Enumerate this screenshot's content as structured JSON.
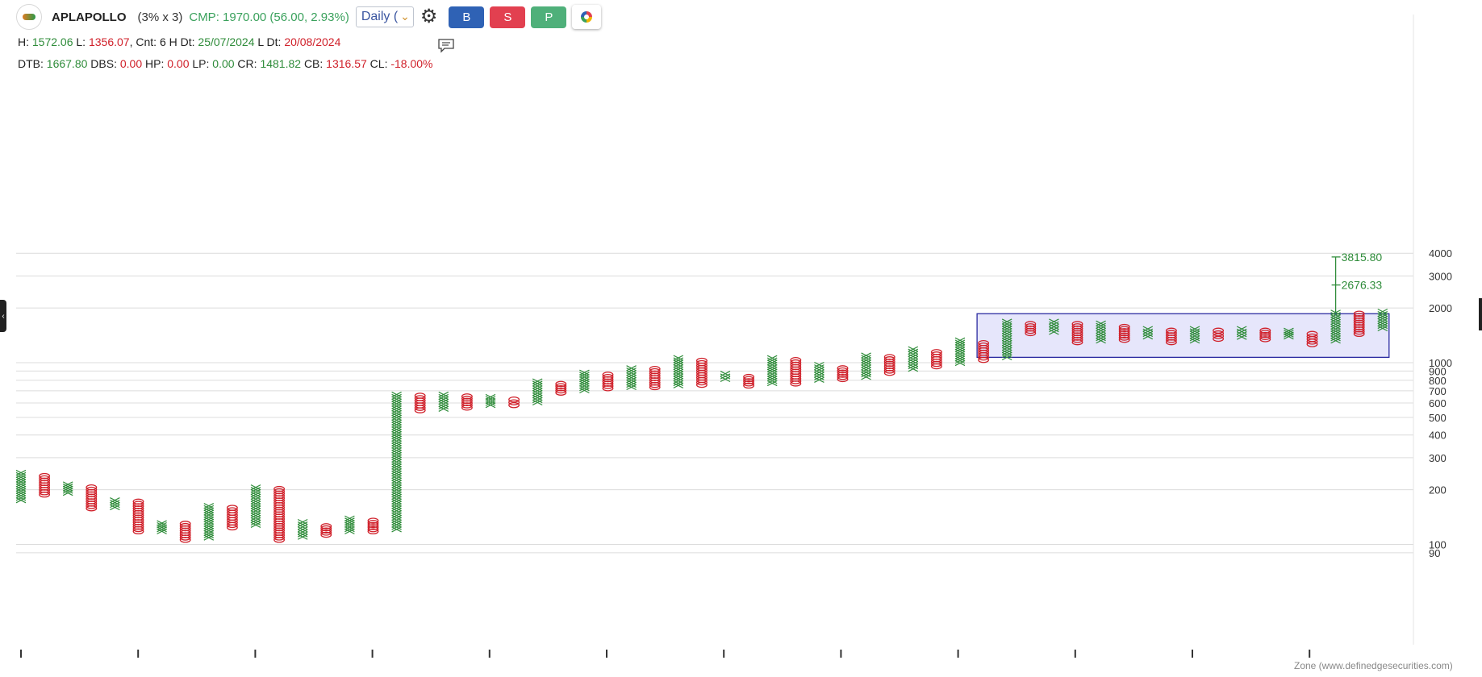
{
  "header": {
    "symbol": "APLAPOLLO",
    "box_size": "(3% x 3)",
    "cmp": "CMP: 1970.00 (56.00, 2.93%)",
    "timeframe": "Daily (",
    "buttons": {
      "buy": "B",
      "sell": "S",
      "p": "P"
    },
    "icons": [
      "logo-icon",
      "chevron-down-icon",
      "gear-icon",
      "ring-icon",
      "comment-icon",
      "collapse-left-icon"
    ]
  },
  "info": {
    "h_label": "H:",
    "h": "1572.06",
    "l_label": "L:",
    "l": "1356.07",
    "cnt_label": ", Cnt:",
    "cnt": "6",
    "hdt_label": "H Dt:",
    "hdt": "25/07/2024",
    "ldt_label": "L Dt:",
    "ldt": "20/08/2024",
    "dtb_label": "DTB:",
    "dtb": "1667.80",
    "dbs_label": "DBS:",
    "dbs": "0.00",
    "hp_label": "HP:",
    "hp": "0.00",
    "lp_label": "LP:",
    "lp": "0.00",
    "cr_label": "CR:",
    "cr": "1481.82",
    "cb_label": "CB:",
    "cb": "1316.57",
    "cl_label": "CL:",
    "cl": "-18.00%"
  },
  "colors": {
    "x": "#2f8c3a",
    "o": "#d0202a",
    "zone_fill": "#e6e6fb",
    "zone_stroke": "#2a2aa0",
    "target": "#2f8c3a"
  },
  "footer": "Zone (www.definedgesecurities.com)",
  "chart_data": {
    "type": "point-and-figure",
    "scale": "log",
    "ylim": [
      85,
      4500
    ],
    "y_ticks": [
      4000,
      3000,
      2000,
      1000,
      900,
      800,
      700,
      600,
      500,
      400,
      300,
      200,
      100,
      90
    ],
    "y_tick_labels": [
      "4000",
      "3000",
      "2000",
      "1000",
      "900",
      "800",
      "700",
      "600",
      "500",
      "400",
      "300",
      "200",
      "100",
      "90"
    ],
    "columns": [
      {
        "t": "X",
        "lo": 175,
        "hi": 248
      },
      {
        "t": "O",
        "lo": 188,
        "hi": 238
      },
      {
        "t": "X",
        "lo": 192,
        "hi": 214
      },
      {
        "t": "O",
        "lo": 158,
        "hi": 206
      },
      {
        "t": "X",
        "lo": 160,
        "hi": 175
      },
      {
        "t": "O",
        "lo": 118,
        "hi": 172
      },
      {
        "t": "X",
        "lo": 118,
        "hi": 131
      },
      {
        "t": "O",
        "lo": 106,
        "hi": 130
      },
      {
        "t": "X",
        "lo": 109,
        "hi": 163
      },
      {
        "t": "O",
        "lo": 124,
        "hi": 159
      },
      {
        "t": "X",
        "lo": 128,
        "hi": 206
      },
      {
        "t": "O",
        "lo": 106,
        "hi": 202
      },
      {
        "t": "X",
        "lo": 110,
        "hi": 133
      },
      {
        "t": "O",
        "lo": 113,
        "hi": 126
      },
      {
        "t": "X",
        "lo": 118,
        "hi": 139
      },
      {
        "t": "O",
        "lo": 118,
        "hi": 135
      },
      {
        "t": "X",
        "lo": 121,
        "hi": 668
      },
      {
        "t": "O",
        "lo": 547,
        "hi": 658
      },
      {
        "t": "X",
        "lo": 557,
        "hi": 668
      },
      {
        "t": "O",
        "lo": 566,
        "hi": 652
      },
      {
        "t": "X",
        "lo": 584,
        "hi": 648
      },
      {
        "t": "O",
        "lo": 584,
        "hi": 627
      },
      {
        "t": "X",
        "lo": 604,
        "hi": 790
      },
      {
        "t": "O",
        "lo": 684,
        "hi": 764
      },
      {
        "t": "X",
        "lo": 704,
        "hi": 882
      },
      {
        "t": "O",
        "lo": 723,
        "hi": 859
      },
      {
        "t": "X",
        "lo": 733,
        "hi": 933
      },
      {
        "t": "O",
        "lo": 733,
        "hi": 924
      },
      {
        "t": "X",
        "lo": 749,
        "hi": 1062
      },
      {
        "t": "O",
        "lo": 755,
        "hi": 1025
      },
      {
        "t": "X",
        "lo": 812,
        "hi": 870
      },
      {
        "t": "O",
        "lo": 748,
        "hi": 835
      },
      {
        "t": "X",
        "lo": 771,
        "hi": 1060
      },
      {
        "t": "O",
        "lo": 768,
        "hi": 1034
      },
      {
        "t": "X",
        "lo": 804,
        "hi": 974
      },
      {
        "t": "O",
        "lo": 812,
        "hi": 932
      },
      {
        "t": "X",
        "lo": 834,
        "hi": 1096
      },
      {
        "t": "O",
        "lo": 879,
        "hi": 1074
      },
      {
        "t": "X",
        "lo": 924,
        "hi": 1187
      },
      {
        "t": "O",
        "lo": 955,
        "hi": 1144
      },
      {
        "t": "X",
        "lo": 995,
        "hi": 1327
      },
      {
        "t": "O",
        "lo": 1035,
        "hi": 1281
      },
      {
        "t": "X",
        "lo": 1070,
        "hi": 1683
      },
      {
        "t": "O",
        "lo": 1454,
        "hi": 1632
      },
      {
        "t": "X",
        "lo": 1476,
        "hi": 1683
      },
      {
        "t": "O",
        "lo": 1296,
        "hi": 1632
      },
      {
        "t": "X",
        "lo": 1322,
        "hi": 1645
      },
      {
        "t": "O",
        "lo": 1336,
        "hi": 1574
      },
      {
        "t": "X",
        "lo": 1392,
        "hi": 1534
      },
      {
        "t": "O",
        "lo": 1296,
        "hi": 1500
      },
      {
        "t": "X",
        "lo": 1322,
        "hi": 1534
      },
      {
        "t": "O",
        "lo": 1353,
        "hi": 1500
      },
      {
        "t": "X",
        "lo": 1385,
        "hi": 1534
      },
      {
        "t": "O",
        "lo": 1346,
        "hi": 1500
      },
      {
        "t": "X",
        "lo": 1392,
        "hi": 1500
      },
      {
        "t": "O",
        "lo": 1264,
        "hi": 1440
      },
      {
        "t": "X",
        "lo": 1322,
        "hi": 1886
      },
      {
        "t": "O",
        "lo": 1440,
        "hi": 1860
      },
      {
        "t": "X",
        "lo": 1545,
        "hi": 1910
      }
    ],
    "zone": {
      "col_from": 41,
      "col_to": 58,
      "lo": 1070,
      "hi": 1860
    },
    "targets": [
      {
        "value": 3815.8,
        "label": "3815.80"
      },
      {
        "value": 2676.33,
        "label": "2676.33"
      }
    ],
    "target_base": 1886,
    "target_col": 56
  }
}
